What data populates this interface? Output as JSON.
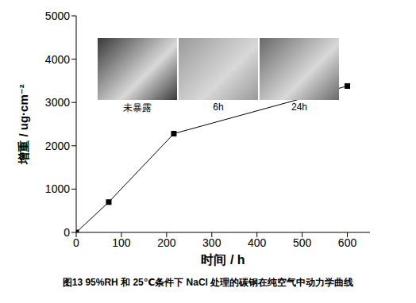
{
  "chart_data": {
    "type": "line",
    "title": "图13 95%RH 和 25℃条件下 NaCl 处理的碳钢在纯空气中动力学曲线",
    "x_label": "时间 / h",
    "y_label": "增重 / ug·cm⁻²",
    "x": [
      0,
      72,
      216,
      600
    ],
    "series": [
      {
        "name": "增重",
        "color": "#000000",
        "marker": "square",
        "line_style": "solid",
        "values": [
          0,
          700,
          2280,
          3380
        ]
      }
    ],
    "xlim": [
      0,
      650
    ],
    "xticks": [
      0,
      100,
      200,
      300,
      400,
      500,
      600
    ],
    "ylim": [
      0,
      5000
    ],
    "yticks": [
      0,
      1000,
      2000,
      3000,
      4000,
      5000
    ],
    "grid": false,
    "annotations": [
      "未暴露",
      "6h",
      "24h"
    ]
  }
}
